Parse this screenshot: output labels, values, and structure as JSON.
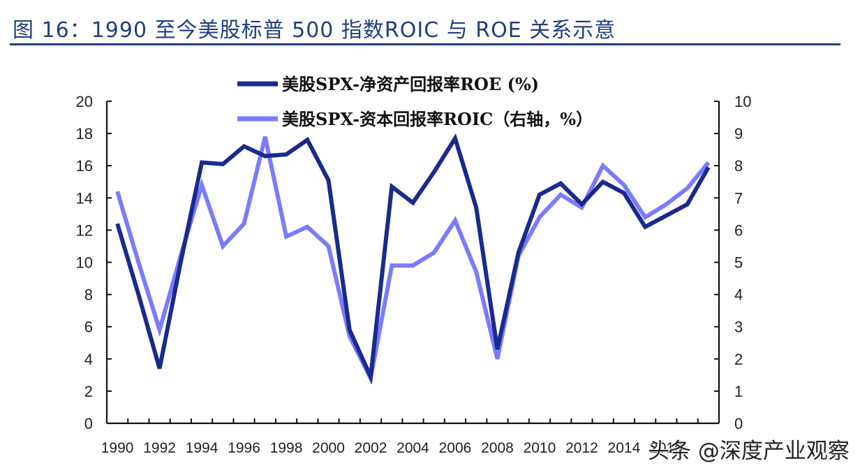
{
  "figure": {
    "title": "图 16：1990 至今美股标普 500 指数ROIC 与 ROE 关系示意",
    "title_color": "#1f3f7f"
  },
  "watermark": "头条 @深度产业观察",
  "chart_data": {
    "type": "line",
    "title": "图 16：1990 至今美股标普 500 指数ROIC 与 ROE 关系示意",
    "xlabel": "",
    "ylabel_left": "",
    "ylabel_right": "",
    "x": [
      1990,
      1991,
      1992,
      1993,
      1994,
      1995,
      1996,
      1997,
      1998,
      1999,
      2000,
      2001,
      2002,
      2003,
      2004,
      2005,
      2006,
      2007,
      2008,
      2009,
      2010,
      2011,
      2012,
      2013,
      2014,
      2015,
      2016,
      2017,
      2018
    ],
    "x_tick_labels": [
      "1990",
      "1992",
      "1994",
      "1996",
      "1998",
      "2000",
      "2002",
      "2004",
      "2006",
      "2008",
      "2010",
      "2012",
      "2014",
      "2016"
    ],
    "y_left_ticks": [
      "0",
      "2",
      "4",
      "6",
      "8",
      "10",
      "12",
      "14",
      "16",
      "18",
      "20"
    ],
    "y_right_ticks": [
      "0",
      "1",
      "2",
      "3",
      "4",
      "5",
      "6",
      "7",
      "8",
      "9",
      "10"
    ],
    "ylim_left": [
      0,
      20
    ],
    "ylim_right": [
      0,
      10
    ],
    "grid": false,
    "legend_position": "top-center",
    "series": [
      {
        "name": "美股SPX-净资产回报率ROE (%)",
        "axis": "left",
        "color": "#1a2a8c",
        "values": [
          12.4,
          8.0,
          3.4,
          10.0,
          16.2,
          16.1,
          17.2,
          16.6,
          16.7,
          17.6,
          15.1,
          5.8,
          2.9,
          14.7,
          13.7,
          15.6,
          17.7,
          13.4,
          4.6,
          10.6,
          14.2,
          14.9,
          13.6,
          15.0,
          14.3,
          12.2,
          12.9,
          13.6,
          15.9
        ]
      },
      {
        "name": "美股SPX-资本回报率ROIC（右轴，%）",
        "axis": "right",
        "color": "#7b7bff",
        "values": [
          7.2,
          5.0,
          2.9,
          5.2,
          7.4,
          5.5,
          6.2,
          8.9,
          5.8,
          6.1,
          5.5,
          2.7,
          1.4,
          4.9,
          4.9,
          5.3,
          6.3,
          4.7,
          2.0,
          5.2,
          6.4,
          7.1,
          6.7,
          8.0,
          7.4,
          6.4,
          6.8,
          7.3,
          8.1
        ]
      }
    ]
  }
}
